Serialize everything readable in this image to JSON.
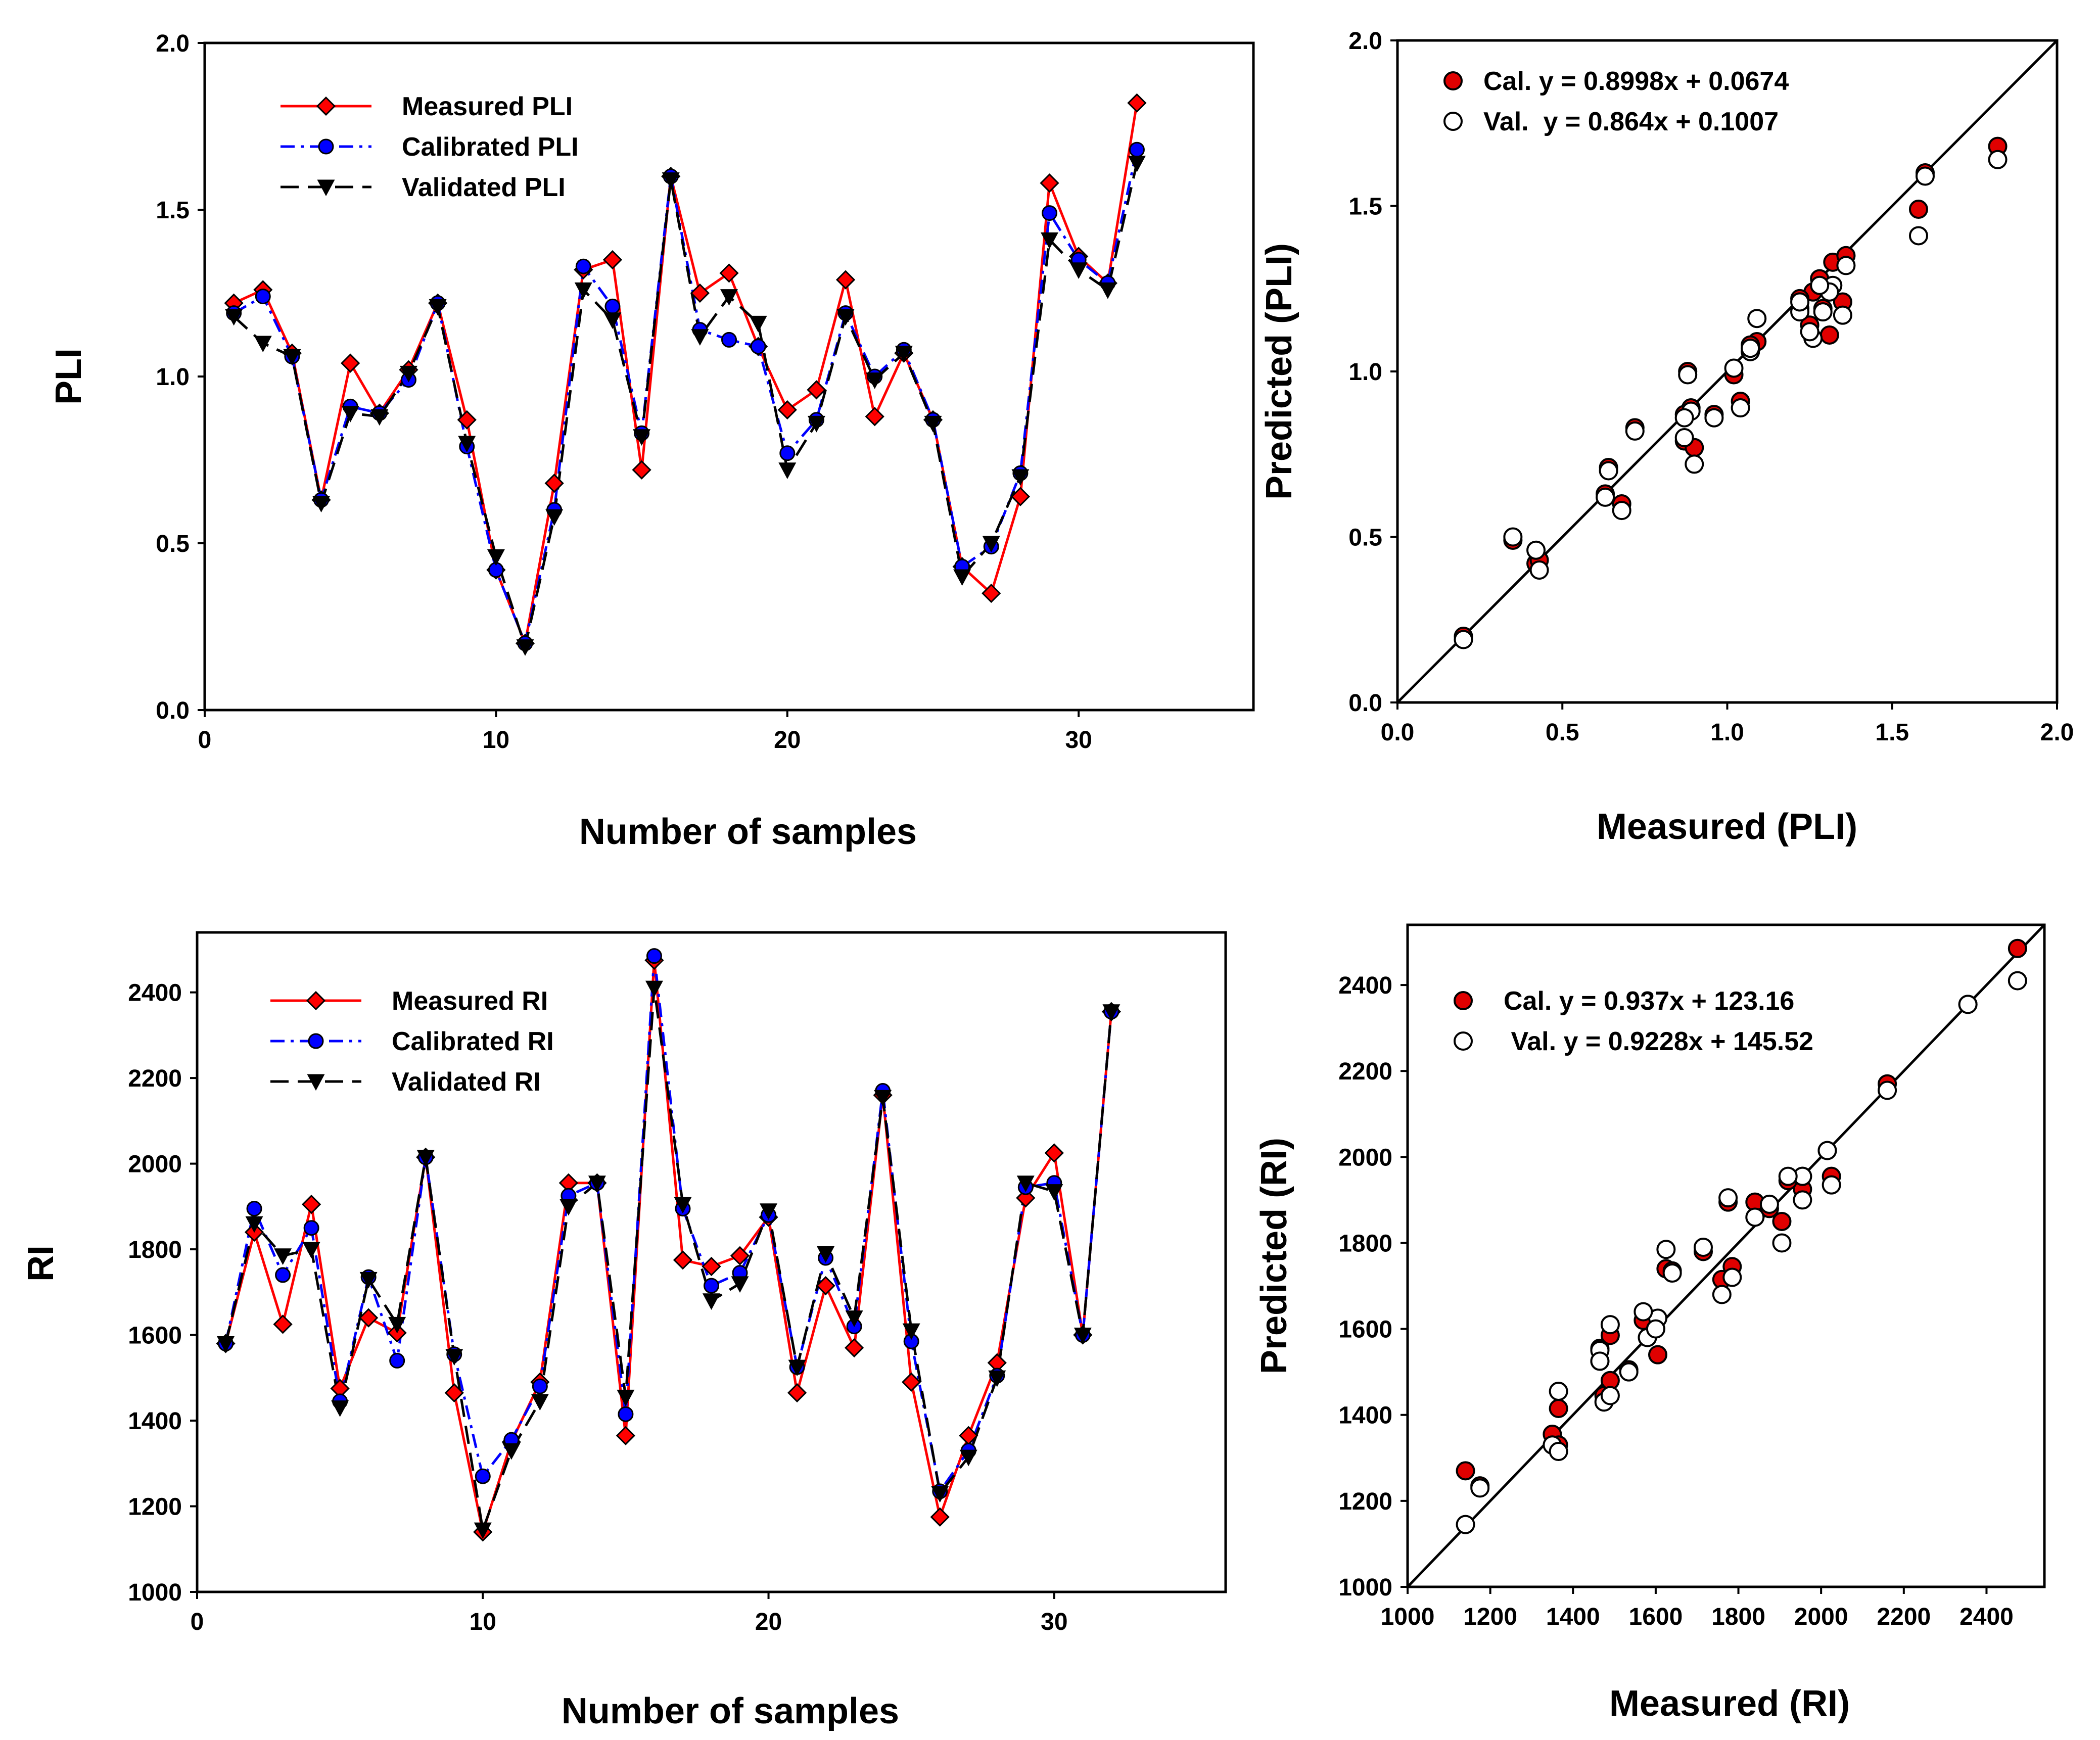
{
  "colors": {
    "measured": "#ff0000",
    "calibrated": "#0000ff",
    "validated": "#000000",
    "cal_point": "#e00000",
    "val_point": "#ffffff"
  },
  "chart_data": [
    {
      "id": "pli-line",
      "type": "line",
      "xlabel": "Number of samples",
      "ylabel": "PLI",
      "xlim": [
        0,
        36
      ],
      "ylim": [
        0,
        2.0
      ],
      "xticks": [
        0,
        10,
        20,
        30
      ],
      "yticks": [
        0.0,
        0.5,
        1.0,
        1.5,
        2.0
      ],
      "xtick_labels": [
        "0",
        "10",
        "20",
        "30"
      ],
      "ytick_labels": [
        "0.0",
        "0.5",
        "1.0",
        "1.5",
        "2.0"
      ],
      "legend_position": "top-left",
      "x": [
        1,
        2,
        3,
        4,
        5,
        6,
        7,
        8,
        9,
        10,
        11,
        12,
        13,
        14,
        15,
        16,
        17,
        18,
        19,
        20,
        21,
        22,
        23,
        24,
        25,
        26,
        27,
        28,
        29,
        30,
        31,
        32
      ],
      "series": [
        {
          "name": "Measured PLI",
          "values": [
            1.22,
            1.26,
            1.07,
            0.63,
            1.04,
            0.89,
            1.02,
            1.22,
            0.87,
            0.42,
            0.2,
            0.68,
            1.32,
            1.35,
            0.72,
            1.6,
            1.25,
            1.31,
            1.09,
            0.9,
            0.96,
            1.29,
            0.88,
            1.07,
            0.87,
            0.43,
            0.35,
            0.64,
            1.58,
            1.36,
            1.28,
            1.82
          ]
        },
        {
          "name": "Calibrated PLI",
          "values": [
            1.19,
            1.24,
            1.06,
            0.63,
            0.91,
            0.89,
            0.99,
            1.22,
            0.79,
            0.42,
            0.2,
            0.6,
            1.33,
            1.21,
            0.83,
            1.6,
            1.14,
            1.11,
            1.09,
            0.77,
            0.87,
            1.19,
            1.0,
            1.08,
            0.87,
            0.43,
            0.49,
            0.71,
            1.49,
            1.35,
            1.28,
            1.68
          ]
        },
        {
          "name": "Validated PLI",
          "values": [
            1.18,
            1.1,
            1.06,
            0.62,
            0.89,
            0.88,
            1.01,
            1.21,
            0.8,
            0.46,
            0.19,
            0.58,
            1.26,
            1.17,
            0.82,
            1.59,
            1.12,
            1.24,
            1.16,
            0.72,
            0.86,
            1.18,
            0.99,
            1.07,
            0.86,
            0.4,
            0.5,
            0.7,
            1.41,
            1.32,
            1.26,
            1.64
          ]
        }
      ]
    },
    {
      "id": "pli-scatter",
      "type": "scatter",
      "xlabel": "Measured (PLI)",
      "ylabel": "Predicted (PLI)",
      "xlim": [
        0,
        2.0
      ],
      "ylim": [
        0,
        2.0
      ],
      "xticks": [
        0.0,
        0.5,
        1.0,
        1.5,
        2.0
      ],
      "yticks": [
        0.0,
        0.5,
        1.0,
        1.5,
        2.0
      ],
      "xtick_labels": [
        "0.0",
        "0.5",
        "1.0",
        "1.5",
        "2.0"
      ],
      "ytick_labels": [
        "0.0",
        "0.5",
        "1.0",
        "1.5",
        "2.0"
      ],
      "legend_position": "top-left",
      "identity_line": true,
      "series": [
        {
          "name": "Cal. y = 0.8998x + 0.0674",
          "x": [
            1.22,
            1.26,
            1.07,
            0.63,
            1.04,
            0.89,
            1.02,
            1.22,
            0.87,
            0.42,
            0.2,
            0.68,
            1.32,
            1.35,
            0.72,
            1.6,
            1.25,
            1.31,
            1.09,
            0.9,
            0.96,
            1.29,
            0.88,
            1.07,
            0.87,
            0.43,
            0.35,
            0.64,
            1.58,
            1.36,
            1.28,
            1.82
          ],
          "y": [
            1.19,
            1.24,
            1.06,
            0.63,
            0.91,
            0.89,
            0.99,
            1.22,
            0.79,
            0.42,
            0.2,
            0.6,
            1.33,
            1.21,
            0.83,
            1.6,
            1.14,
            1.11,
            1.09,
            0.77,
            0.87,
            1.19,
            1.0,
            1.08,
            0.87,
            0.43,
            0.49,
            0.71,
            1.49,
            1.35,
            1.28,
            1.68
          ]
        },
        {
          "name": "Val.  y = 0.864x + 0.1007",
          "x": [
            1.22,
            1.26,
            1.07,
            0.63,
            1.04,
            0.89,
            1.02,
            1.22,
            0.87,
            0.42,
            0.2,
            0.68,
            1.32,
            1.35,
            0.72,
            1.6,
            1.25,
            1.31,
            1.09,
            0.9,
            0.96,
            1.29,
            0.88,
            1.07,
            0.87,
            0.43,
            0.35,
            0.64,
            1.58,
            1.36,
            1.28,
            1.82
          ],
          "y": [
            1.18,
            1.1,
            1.06,
            0.62,
            0.89,
            0.88,
            1.01,
            1.21,
            0.8,
            0.46,
            0.19,
            0.58,
            1.26,
            1.17,
            0.82,
            1.59,
            1.12,
            1.24,
            1.16,
            0.72,
            0.86,
            1.18,
            0.99,
            1.07,
            0.86,
            0.4,
            0.5,
            0.7,
            1.41,
            1.32,
            1.26,
            1.64
          ]
        }
      ]
    },
    {
      "id": "ri-line",
      "type": "line",
      "xlabel": "Number of samples",
      "ylabel": "RI",
      "xlim": [
        0,
        36
      ],
      "ylim": [
        1000,
        2540
      ],
      "xticks": [
        0,
        10,
        20,
        30
      ],
      "yticks": [
        1000,
        1200,
        1400,
        1600,
        1800,
        2000,
        2200,
        2400
      ],
      "xtick_labels": [
        "0",
        "10",
        "20",
        "30"
      ],
      "ytick_labels": [
        "1000",
        "1200",
        "1400",
        "1600",
        "1800",
        "2000",
        "2200",
        "2400"
      ],
      "legend_position": "top-left",
      "x": [
        1,
        2,
        3,
        4,
        5,
        6,
        7,
        8,
        9,
        10,
        11,
        12,
        13,
        14,
        15,
        16,
        17,
        18,
        19,
        20,
        21,
        22,
        23,
        24,
        25,
        26,
        27,
        28,
        29,
        30,
        31,
        32
      ],
      "series": [
        {
          "name": "Measured RI",
          "values": [
            1580,
            1840,
            1625,
            1905,
            1475,
            1640,
            1605,
            2015,
            1465,
            1140,
            1350,
            1490,
            1955,
            1955,
            1365,
            2475,
            1775,
            1760,
            1785,
            1875,
            1465,
            1715,
            1570,
            2160,
            1490,
            1175,
            1365,
            1535,
            1920,
            2025,
            1600,
            2355
          ]
        },
        {
          "name": "Calibrated RI",
          "values": [
            1580,
            1895,
            1740,
            1850,
            1445,
            1735,
            1540,
            2015,
            1555,
            1270,
            1355,
            1480,
            1925,
            1955,
            1415,
            2485,
            1895,
            1715,
            1745,
            1880,
            1525,
            1780,
            1620,
            2170,
            1585,
            1235,
            1330,
            1505,
            1945,
            1955,
            1600,
            2355
          ]
        },
        {
          "name": "Validated RI",
          "values": [
            1580,
            1860,
            1785,
            1800,
            1430,
            1730,
            1625,
            2015,
            1550,
            1145,
            1330,
            1445,
            1900,
            1955,
            1455,
            2410,
            1905,
            1680,
            1720,
            1890,
            1525,
            1790,
            1640,
            2155,
            1610,
            1230,
            1315,
            1500,
            1955,
            1935,
            1600,
            2355
          ]
        }
      ]
    },
    {
      "id": "ri-scatter",
      "type": "scatter",
      "xlabel": "Measured (RI)",
      "ylabel": "Predicted (RI)",
      "xlim": [
        1000,
        2540
      ],
      "ylim": [
        1000,
        2540
      ],
      "xticks": [
        1000,
        1200,
        1400,
        1600,
        1800,
        2000,
        2200,
        2400
      ],
      "yticks": [
        1000,
        1200,
        1400,
        1600,
        1800,
        2000,
        2200,
        2400
      ],
      "xtick_labels": [
        "1000",
        "1200",
        "1400",
        "1600",
        "1800",
        "2000",
        "2200",
        "2400"
      ],
      "ytick_labels": [
        "1000",
        "1200",
        "1400",
        "1600",
        "1800",
        "2000",
        "2200",
        "2400"
      ],
      "legend_position": "top-left",
      "identity_line": true,
      "series": [
        {
          "name": "Cal. y = 0.937x + 123.16",
          "x": [
            1580,
            1840,
            1625,
            1905,
            1475,
            1640,
            1605,
            2015,
            1465,
            1140,
            1350,
            1490,
            1955,
            1955,
            1365,
            2475,
            1775,
            1760,
            1785,
            1875,
            1465,
            1715,
            1570,
            2160,
            1490,
            1175,
            1365,
            1535,
            1920,
            2025,
            1600,
            2355
          ],
          "y": [
            1580,
            1895,
            1740,
            1850,
            1445,
            1735,
            1540,
            2015,
            1555,
            1270,
            1355,
            1480,
            1925,
            1955,
            1415,
            2485,
            1895,
            1715,
            1745,
            1880,
            1525,
            1780,
            1620,
            2170,
            1585,
            1235,
            1330,
            1505,
            1945,
            1955,
            1600,
            2355
          ]
        },
        {
          "name": " Val. y = 0.9228x + 145.52",
          "x": [
            1580,
            1840,
            1625,
            1905,
            1475,
            1640,
            1605,
            2015,
            1465,
            1140,
            1350,
            1490,
            1955,
            1955,
            1365,
            2475,
            1775,
            1760,
            1785,
            1875,
            1465,
            1715,
            1570,
            2160,
            1490,
            1175,
            1365,
            1535,
            1920,
            2025,
            1600,
            2355
          ],
          "y": [
            1580,
            1860,
            1785,
            1800,
            1430,
            1730,
            1625,
            2015,
            1550,
            1145,
            1330,
            1445,
            1900,
            1955,
            1455,
            2410,
            1905,
            1680,
            1720,
            1890,
            1525,
            1790,
            1640,
            2155,
            1610,
            1230,
            1315,
            1500,
            1955,
            1935,
            1600,
            2355
          ]
        }
      ]
    }
  ]
}
